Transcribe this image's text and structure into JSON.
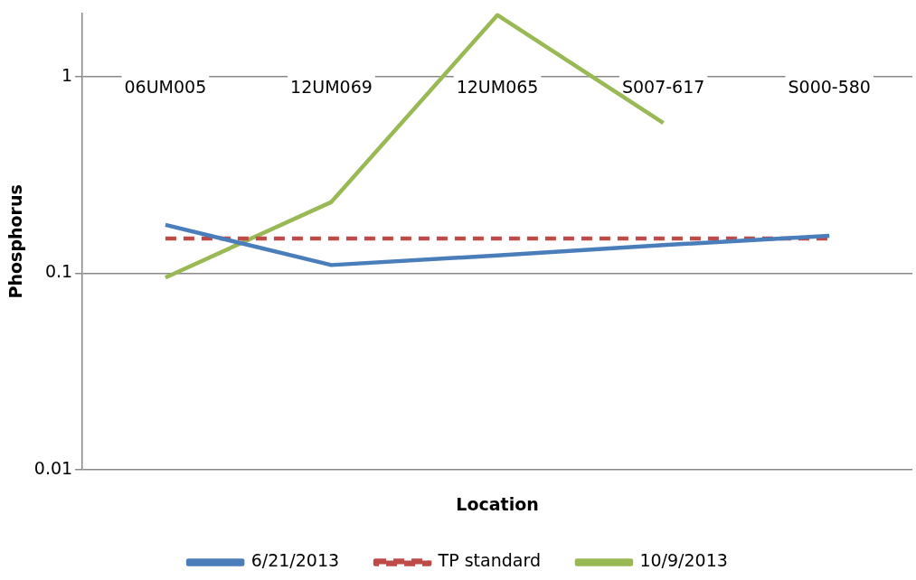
{
  "chart_data": {
    "type": "line",
    "xlabel": "Location",
    "ylabel": "Phosphorus",
    "categories": [
      "06UM005",
      "12UM069",
      "12UM065",
      "S007-617",
      "S000-580"
    ],
    "series": [
      {
        "name": "6/21/2013",
        "color": "#4a7ebb",
        "values": [
          0.176,
          0.11,
          0.123,
          0.139,
          0.155
        ]
      },
      {
        "name": "TP standard",
        "color": "#be4b48",
        "line_style": "dashed",
        "values": [
          0.15,
          0.15,
          0.15,
          0.15,
          0.15
        ]
      },
      {
        "name": "10/9/2013",
        "color": "#98b954",
        "values": [
          0.095,
          0.23,
          2.05,
          0.58,
          null
        ]
      }
    ],
    "log": "y",
    "ylim": [
      0.01,
      2.1
    ],
    "yticks": [
      0.01,
      0.1,
      1
    ],
    "grid": "y",
    "legend": "bottom",
    "marker": "none"
  }
}
